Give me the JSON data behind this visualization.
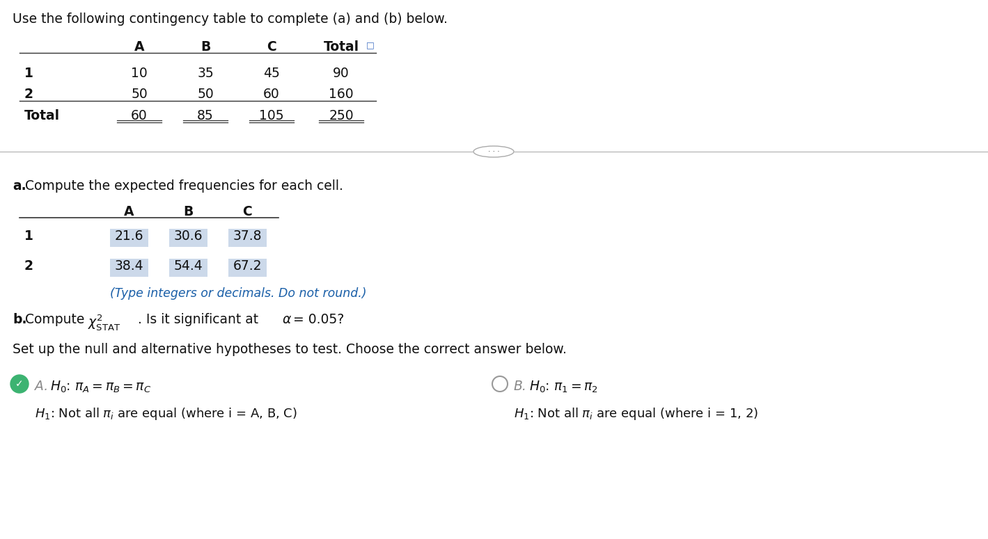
{
  "bg_color": "#ffffff",
  "title_text": "Use the following contingency table to complete (a) and (b) below.",
  "top_table_col_headers": [
    "A",
    "B",
    "C",
    "Total"
  ],
  "top_table_rows": [
    [
      "1",
      "10",
      "35",
      "45",
      "90"
    ],
    [
      "2",
      "50",
      "50",
      "60",
      "160"
    ],
    [
      "Total",
      "60",
      "85",
      "105",
      "250"
    ]
  ],
  "section_a_label": "Compute the expected frequencies for each cell.",
  "bottom_table_col_headers": [
    "A",
    "B",
    "C"
  ],
  "bottom_table_rows": [
    [
      "1",
      "21.6",
      "30.6",
      "37.8"
    ],
    [
      "2",
      "38.4",
      "54.4",
      "67.2"
    ]
  ],
  "cell_color": "#ccd9ea",
  "type_note": "(Type integers or decimals. Do not round.)",
  "hypotheses_intro": "Set up the null and alternative hypotheses to test. Choose the correct answer below.",
  "opt_a_h0": "H₀: πA = πB = πC",
  "opt_a_ha": "H₁: Not all πi are equal (where i = A, B, C)",
  "opt_b_h0": "H₀: π1 = π2",
  "opt_b_ha": "H₁: Not all πi are equal (where i = 1, 2)"
}
